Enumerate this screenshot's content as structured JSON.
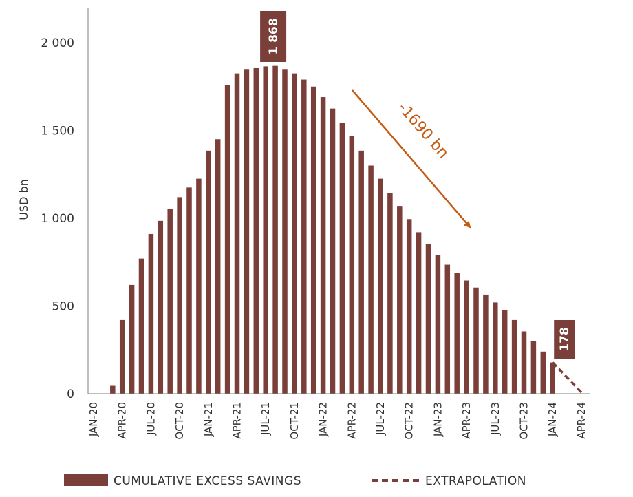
{
  "colors": {
    "bar": "#7b3f3a",
    "arrow": "#c55a11",
    "axis": "#7f7f7f",
    "extrapolation": "#7b3f3a"
  },
  "chart_data": {
    "type": "bar",
    "ylabel": "USD bn",
    "ylim": [
      0,
      2200
    ],
    "yticks": [
      0,
      500,
      1000,
      1500,
      2000
    ],
    "ytick_labels": [
      "0",
      "500",
      "1 000",
      "1 500",
      "2 000"
    ],
    "x_tick_labels": [
      "JAN-20",
      "APR-20",
      "JUL-20",
      "OCT-20",
      "JAN-21",
      "APR-21",
      "JUL-21",
      "OCT-21",
      "JAN-22",
      "APR-22",
      "JUL-22",
      "OCT-22",
      "JAN-23",
      "APR-23",
      "JUL-23",
      "OCT-23",
      "JAN-24",
      "APR-24"
    ],
    "categories": [
      "JAN-20",
      "FEB-20",
      "MAR-20",
      "APR-20",
      "MAY-20",
      "JUN-20",
      "JUL-20",
      "AUG-20",
      "SEP-20",
      "OCT-20",
      "NOV-20",
      "DEC-20",
      "JAN-21",
      "FEB-21",
      "MAR-21",
      "APR-21",
      "MAY-21",
      "JUN-21",
      "JUL-21",
      "AUG-21",
      "SEP-21",
      "OCT-21",
      "NOV-21",
      "DEC-21",
      "JAN-22",
      "FEB-22",
      "MAR-22",
      "APR-22",
      "MAY-22",
      "JUN-22",
      "JUL-22",
      "AUG-22",
      "SEP-22",
      "OCT-22",
      "NOV-22",
      "DEC-22",
      "JAN-23",
      "FEB-23",
      "MAR-23",
      "APR-23",
      "MAY-23",
      "JUN-23",
      "JUL-23",
      "AUG-23",
      "SEP-23",
      "OCT-23",
      "NOV-23",
      "DEC-23",
      "JAN-24",
      "FEB-24",
      "MAR-24",
      "APR-24"
    ],
    "series": [
      {
        "name": "CUMULATIVE EXCESS SAVINGS",
        "values": [
          2,
          2,
          45,
          420,
          620,
          770,
          910,
          985,
          1055,
          1120,
          1175,
          1225,
          1385,
          1450,
          1760,
          1825,
          1850,
          1855,
          1865,
          1868,
          1850,
          1825,
          1790,
          1750,
          1690,
          1625,
          1545,
          1470,
          1385,
          1300,
          1225,
          1145,
          1070,
          995,
          920,
          855,
          790,
          735,
          690,
          645,
          605,
          565,
          520,
          475,
          420,
          355,
          300,
          240,
          178,
          null,
          null,
          null
        ]
      },
      {
        "name": "EXTRAPOLATION",
        "style": "dashed",
        "x": [
          "JAN-24",
          "APR-24"
        ],
        "values": [
          178,
          0
        ]
      }
    ],
    "annotations": {
      "peak_label": "1 868",
      "peak_category": "AUG-21",
      "last_label": "178",
      "last_category": "JAN-24",
      "arrow_label": "-1690 bn"
    },
    "legend": {
      "placement": "bottom",
      "items": [
        "CUMULATIVE EXCESS SAVINGS",
        "EXTRAPOLATION"
      ]
    },
    "grid": false
  }
}
